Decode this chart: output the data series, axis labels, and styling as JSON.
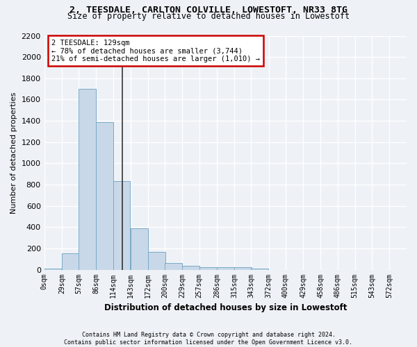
{
  "title_line1": "2, TEESDALE, CARLTON COLVILLE, LOWESTOFT, NR33 8TG",
  "title_line2": "Size of property relative to detached houses in Lowestoft",
  "xlabel": "Distribution of detached houses by size in Lowestoft",
  "ylabel": "Number of detached properties",
  "footnote": "Contains HM Land Registry data © Crown copyright and database right 2024.\nContains public sector information licensed under the Open Government Licence v3.0.",
  "bar_left_edges": [
    0,
    29,
    57,
    86,
    114,
    143,
    172,
    200,
    229,
    257,
    286,
    315,
    343,
    372,
    400,
    429,
    458,
    486,
    515,
    543
  ],
  "bar_width": 28.5,
  "bar_heights": [
    10,
    155,
    1700,
    1390,
    835,
    390,
    165,
    65,
    35,
    25,
    25,
    20,
    10,
    0,
    0,
    0,
    0,
    0,
    0,
    0
  ],
  "bar_color": "#c8d8e8",
  "bar_edgecolor": "#7aaac8",
  "x_tick_labels": [
    "0sqm",
    "29sqm",
    "57sqm",
    "86sqm",
    "114sqm",
    "143sqm",
    "172sqm",
    "200sqm",
    "229sqm",
    "257sqm",
    "286sqm",
    "315sqm",
    "343sqm",
    "372sqm",
    "400sqm",
    "429sqm",
    "458sqm",
    "486sqm",
    "515sqm",
    "543sqm",
    "572sqm"
  ],
  "x_tick_positions": [
    0,
    29,
    57,
    86,
    114,
    143,
    172,
    200,
    229,
    257,
    286,
    315,
    343,
    372,
    400,
    429,
    458,
    486,
    515,
    543,
    572
  ],
  "ylim": [
    0,
    2200
  ],
  "yticks": [
    0,
    200,
    400,
    600,
    800,
    1000,
    1200,
    1400,
    1600,
    1800,
    2000,
    2200
  ],
  "property_size": 129,
  "annotation_line1": "2 TEESDALE: 129sqm",
  "annotation_line2": "← 78% of detached houses are smaller (3,744)",
  "annotation_line3": "21% of semi-detached houses are larger (1,010) →",
  "annotation_box_color": "#ffffff",
  "annotation_box_edgecolor": "#cc0000",
  "vline_color": "#333333",
  "background_color": "#eef2f7",
  "plot_background": "#eef2f7",
  "grid_color": "#ffffff"
}
